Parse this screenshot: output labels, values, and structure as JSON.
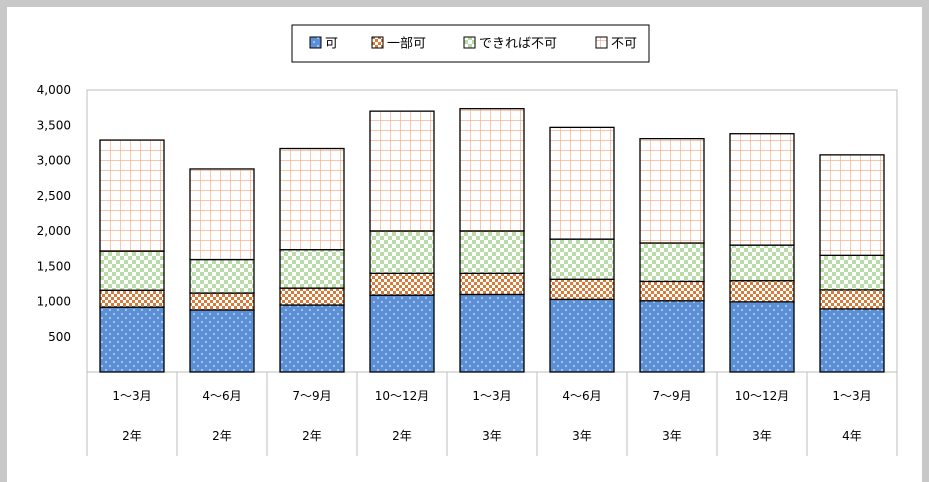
{
  "chart_data": {
    "type": "bar",
    "stacked": true,
    "categories": [
      [
        "1～3月",
        "2年"
      ],
      [
        "4～6月",
        "2年"
      ],
      [
        "7～9月",
        "2年"
      ],
      [
        "10～12月",
        "2年"
      ],
      [
        "1～3月",
        "3年"
      ],
      [
        "4～6月",
        "3年"
      ],
      [
        "7～9月",
        "3年"
      ],
      [
        "10～12月",
        "3年"
      ],
      [
        "1～3月",
        "4年"
      ]
    ],
    "series": [
      {
        "name": "可",
        "color": "#5b8fd6",
        "pattern": "dots",
        "values": [
          920,
          880,
          950,
          1090,
          1100,
          1030,
          1010,
          995,
          895
        ]
      },
      {
        "name": "一部可",
        "color": "#d77a3a",
        "pattern": "checker",
        "values": [
          240,
          240,
          240,
          310,
          300,
          285,
          275,
          300,
          270
        ]
      },
      {
        "name": "できれば不可",
        "color": "#9bc98a",
        "pattern": "light-checker",
        "values": [
          555,
          475,
          545,
          600,
          600,
          570,
          545,
          505,
          490
        ]
      },
      {
        "name": "不可",
        "color": "#f4a57a",
        "pattern": "grid",
        "values": [
          1575,
          1285,
          1435,
          1700,
          1735,
          1585,
          1480,
          1580,
          1425
        ]
      }
    ],
    "ylim": [
      0,
      4000
    ],
    "yticks": [
      "500",
      "1,000",
      "1,500",
      "2,000",
      "2,500",
      "3,000",
      "3,500",
      "4,000"
    ],
    "legend_position": "top",
    "grid": false
  }
}
